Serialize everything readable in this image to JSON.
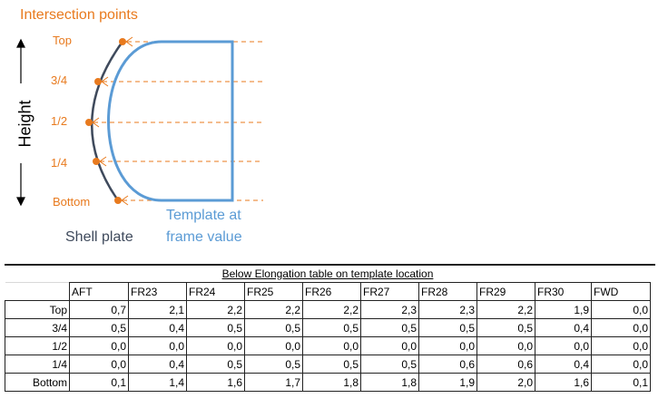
{
  "diagram": {
    "title": "Intersection points",
    "axis_label": "Height",
    "levels": [
      "Top",
      "3/4",
      "1/2",
      "1/4",
      "Bottom"
    ],
    "template_label": [
      "Template at",
      "frame value"
    ],
    "shell_label": "Shell plate",
    "colors": {
      "orange": "#E87A1E",
      "template": "#5B9BD5",
      "shell": "#3F4A5C"
    }
  },
  "table": {
    "title": "Below Elongation table on template location",
    "columns": [
      "AFT",
      "FR23",
      "FR24",
      "FR25",
      "FR26",
      "FR27",
      "FR28",
      "FR29",
      "FR30",
      "FWD"
    ],
    "rows": [
      {
        "label": "Top",
        "values": [
          "0,7",
          "2,1",
          "2,2",
          "2,2",
          "2,2",
          "2,3",
          "2,3",
          "2,2",
          "1,9",
          "0,0"
        ]
      },
      {
        "label": "3/4",
        "values": [
          "0,5",
          "0,4",
          "0,5",
          "0,5",
          "0,5",
          "0,5",
          "0,5",
          "0,5",
          "0,4",
          "0,0"
        ]
      },
      {
        "label": "1/2",
        "values": [
          "0,0",
          "0,0",
          "0,0",
          "0,0",
          "0,0",
          "0,0",
          "0,0",
          "0,0",
          "0,0",
          "0,0"
        ]
      },
      {
        "label": "1/4",
        "values": [
          "0,0",
          "0,4",
          "0,5",
          "0,5",
          "0,5",
          "0,5",
          "0,6",
          "0,6",
          "0,4",
          "0,0"
        ]
      },
      {
        "label": "Bottom",
        "values": [
          "0,1",
          "1,4",
          "1,6",
          "1,7",
          "1,8",
          "1,8",
          "1,9",
          "2,0",
          "1,6",
          "0,1"
        ]
      }
    ]
  }
}
